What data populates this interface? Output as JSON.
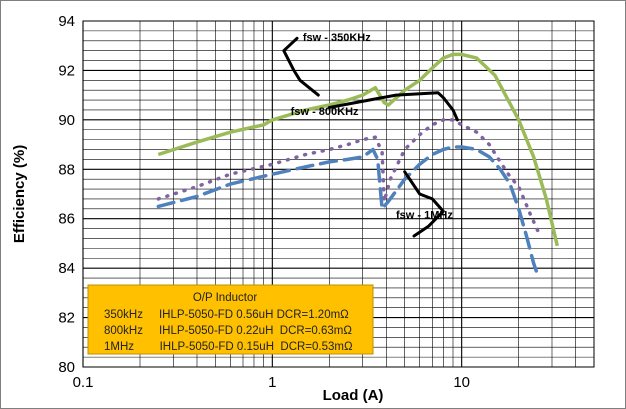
{
  "chart_data": {
    "type": "line",
    "xlabel": "Load  (A)",
    "ylabel": "Efficiency (%)",
    "x_scale": "log",
    "xlim": [
      0.1,
      50
    ],
    "ylim": [
      80,
      94
    ],
    "x_ticks": [
      0.1,
      1,
      10
    ],
    "x_tick_labels": [
      "0.1",
      "1",
      "10"
    ],
    "y_ticks": [
      80,
      82,
      84,
      86,
      88,
      90,
      92,
      94
    ],
    "y_tick_labels": [
      "80",
      "82",
      "84",
      "86",
      "88",
      "90",
      "92",
      "94"
    ],
    "grid": true,
    "series": [
      {
        "name": "fsw - 350KHz",
        "color": "#9bbb59",
        "dash": "solid",
        "points": [
          [
            0.25,
            88.6
          ],
          [
            0.4,
            89.1
          ],
          [
            0.6,
            89.5
          ],
          [
            0.9,
            89.8
          ],
          [
            1.0,
            90.0
          ],
          [
            1.5,
            90.4
          ],
          [
            2.0,
            90.6
          ],
          [
            2.5,
            90.8
          ],
          [
            3.0,
            91.0
          ],
          [
            3.5,
            91.3
          ],
          [
            3.9,
            90.7
          ],
          [
            4.1,
            90.6
          ],
          [
            5.0,
            91.2
          ],
          [
            6.0,
            91.6
          ],
          [
            7.0,
            92.1
          ],
          [
            8.0,
            92.5
          ],
          [
            9.0,
            92.65
          ],
          [
            10.0,
            92.65
          ],
          [
            12.0,
            92.5
          ],
          [
            15.0,
            91.8
          ],
          [
            20.0,
            90.0
          ],
          [
            24.0,
            88.5
          ],
          [
            28.0,
            86.8
          ],
          [
            32.0,
            84.9
          ]
        ]
      },
      {
        "name": "fsw - 800KHz",
        "color": "#8064a2",
        "dash": "dotted",
        "points": [
          [
            0.25,
            86.8
          ],
          [
            0.4,
            87.3
          ],
          [
            0.6,
            87.8
          ],
          [
            1.0,
            88.2
          ],
          [
            1.5,
            88.6
          ],
          [
            2.0,
            88.8
          ],
          [
            2.5,
            89.0
          ],
          [
            3.0,
            89.2
          ],
          [
            3.5,
            89.3
          ],
          [
            3.8,
            88.7
          ],
          [
            3.9,
            86.7
          ],
          [
            4.2,
            87.6
          ],
          [
            5.0,
            88.8
          ],
          [
            6.0,
            89.4
          ],
          [
            7.0,
            89.8
          ],
          [
            8.0,
            90.0
          ],
          [
            9.0,
            90.0
          ],
          [
            10.0,
            89.8
          ],
          [
            12.0,
            89.5
          ],
          [
            14.0,
            89.0
          ],
          [
            16.0,
            88.3
          ],
          [
            18.0,
            87.7
          ],
          [
            20.0,
            87.3
          ],
          [
            23.0,
            86.2
          ],
          [
            26.0,
            85.3
          ]
        ]
      },
      {
        "name": "fsw - 1MHz",
        "color": "#4f81bd",
        "dash": "dashed",
        "points": [
          [
            0.25,
            86.5
          ],
          [
            0.4,
            86.9
          ],
          [
            0.6,
            87.4
          ],
          [
            1.0,
            87.8
          ],
          [
            1.5,
            88.1
          ],
          [
            2.0,
            88.3
          ],
          [
            2.5,
            88.4
          ],
          [
            3.0,
            88.5
          ],
          [
            3.4,
            88.8
          ],
          [
            3.6,
            88.4
          ],
          [
            3.8,
            86.4
          ],
          [
            4.1,
            86.7
          ],
          [
            5.0,
            87.6
          ],
          [
            6.0,
            88.2
          ],
          [
            7.0,
            88.6
          ],
          [
            8.0,
            88.8
          ],
          [
            9.0,
            88.9
          ],
          [
            10.0,
            88.9
          ],
          [
            12.0,
            88.8
          ],
          [
            14.0,
            88.5
          ],
          [
            16.0,
            88.0
          ],
          [
            18.0,
            87.4
          ],
          [
            20.0,
            86.4
          ],
          [
            22.0,
            85.3
          ],
          [
            24.0,
            84.2
          ],
          [
            25.5,
            83.6
          ]
        ]
      }
    ],
    "annotations": [
      {
        "text": "fsw - 350KHz",
        "x": 1.45,
        "y": 93.2
      },
      {
        "text": "fsw - 800KHz",
        "x": 1.25,
        "y": 90.2
      },
      {
        "text": "fsw - 1MHz",
        "x": 4.5,
        "y": 86.0
      }
    ],
    "annotation_pointers": [
      [
        [
          1.35,
          93.3
        ],
        [
          1.15,
          92.8
        ],
        [
          1.3,
          92.0
        ],
        [
          1.4,
          91.6
        ],
        [
          1.75,
          91.0
        ]
      ],
      [
        [
          2.0,
          90.5
        ],
        [
          4.5,
          91.0
        ],
        [
          7.5,
          91.1
        ],
        [
          8.0,
          90.9
        ],
        [
          9.0,
          90.4
        ],
        [
          9.5,
          90.0
        ]
      ],
      [
        [
          5.0,
          87.9
        ],
        [
          6.0,
          87.0
        ],
        [
          7.0,
          86.8
        ],
        [
          8.0,
          86.3
        ],
        [
          6.7,
          85.7
        ],
        [
          5.6,
          85.3
        ]
      ]
    ],
    "legend": {
      "position": "bottom-left",
      "background": "#ffc000",
      "title": "O/P Inductor",
      "rows": [
        "350kHz     IHLP-5050-FD 0.56uH DCR=1.20mΩ",
        "800kHz     IHLP-5050-FD 0.22uH  DCR=0.63mΩ",
        "1MHz        IHLP-5050-FD 0.15uH  DCR=0.53mΩ"
      ]
    }
  }
}
